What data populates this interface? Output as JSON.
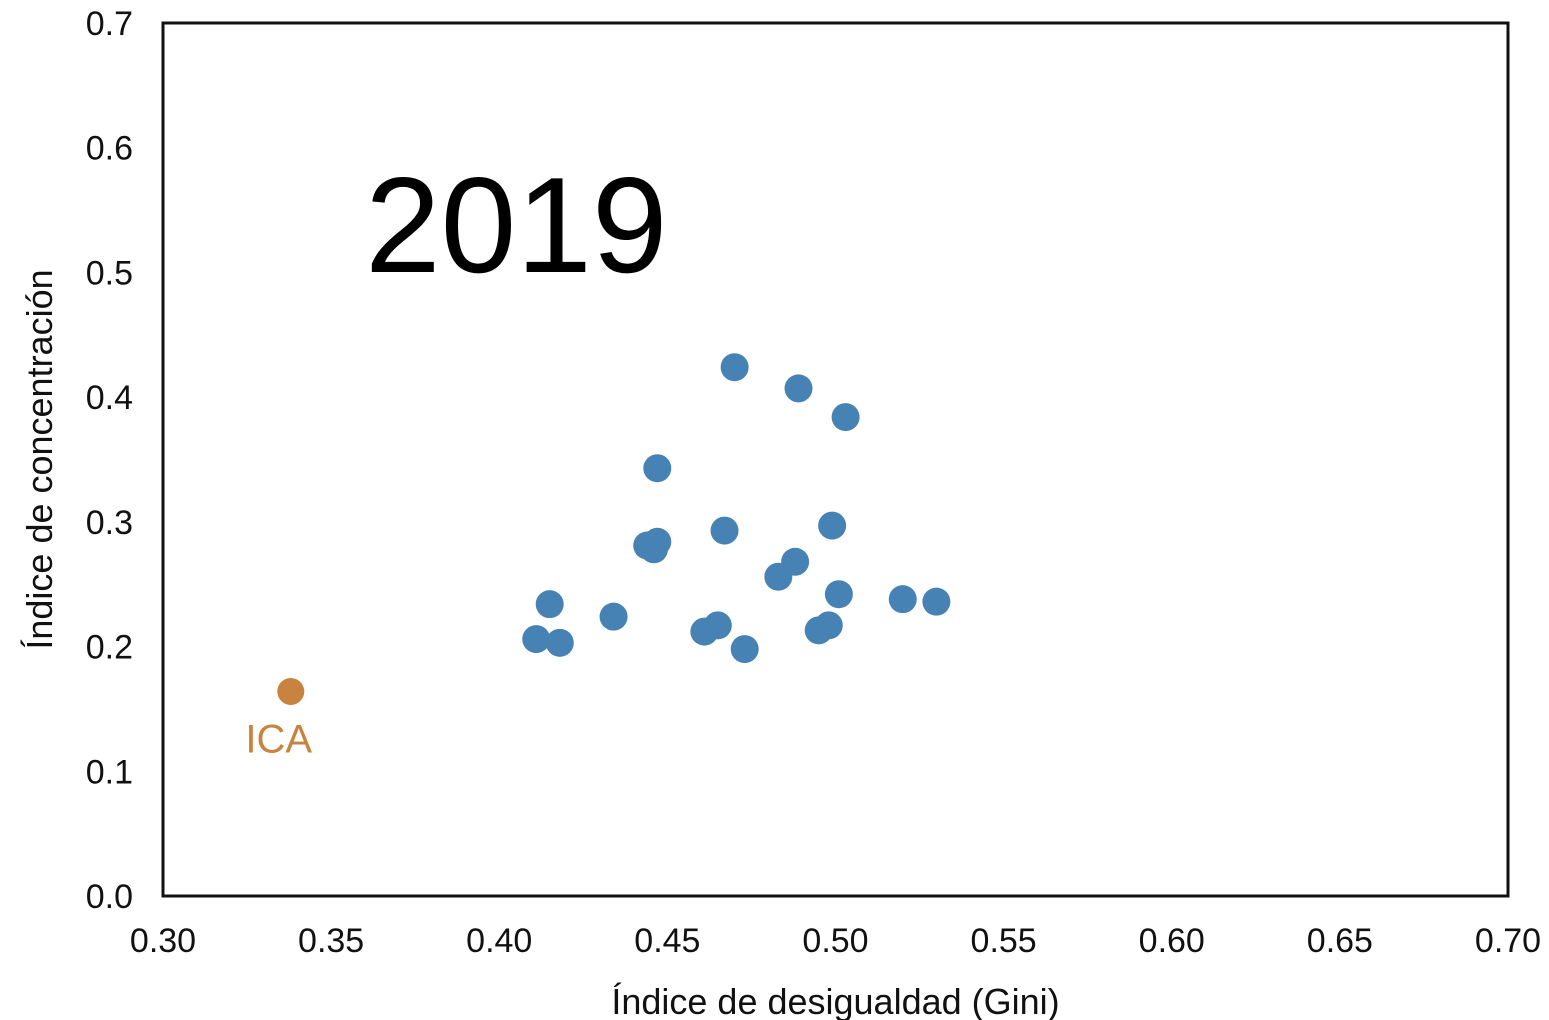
{
  "chart_data": {
    "type": "scatter",
    "xlabel": "Índice de desigualdad (Gini)",
    "ylabel": "Índice de concentración",
    "xlim": [
      0.3,
      0.7
    ],
    "ylim": [
      0.0,
      0.7
    ],
    "x_ticks": [
      "0.30",
      "0.35",
      "0.40",
      "0.45",
      "0.50",
      "0.55",
      "0.60",
      "0.65",
      "0.70"
    ],
    "y_ticks": [
      "0.0",
      "0.1",
      "0.2",
      "0.3",
      "0.4",
      "0.5",
      "0.6",
      "0.7"
    ],
    "grid": false,
    "annotations": [
      {
        "text": "2019"
      }
    ],
    "colors": {
      "default_point": "#4682b4",
      "highlight_point": "#c8833f",
      "axis": "#111111"
    },
    "series": [
      {
        "points": [
          {
            "x": 0.47,
            "y": 0.424
          },
          {
            "x": 0.489,
            "y": 0.407
          },
          {
            "x": 0.503,
            "y": 0.384
          },
          {
            "x": 0.447,
            "y": 0.343
          },
          {
            "x": 0.467,
            "y": 0.293
          },
          {
            "x": 0.499,
            "y": 0.297
          },
          {
            "x": 0.447,
            "y": 0.284
          },
          {
            "x": 0.444,
            "y": 0.281
          },
          {
            "x": 0.446,
            "y": 0.278
          },
          {
            "x": 0.488,
            "y": 0.268
          },
          {
            "x": 0.483,
            "y": 0.256
          },
          {
            "x": 0.501,
            "y": 0.242
          },
          {
            "x": 0.52,
            "y": 0.238
          },
          {
            "x": 0.53,
            "y": 0.236
          },
          {
            "x": 0.415,
            "y": 0.234
          },
          {
            "x": 0.434,
            "y": 0.224
          },
          {
            "x": 0.465,
            "y": 0.217
          },
          {
            "x": 0.461,
            "y": 0.212
          },
          {
            "x": 0.498,
            "y": 0.217
          },
          {
            "x": 0.495,
            "y": 0.213
          },
          {
            "x": 0.411,
            "y": 0.206
          },
          {
            "x": 0.418,
            "y": 0.203
          },
          {
            "x": 0.473,
            "y": 0.198
          }
        ]
      },
      {
        "highlight": true,
        "points": [
          {
            "x": 0.338,
            "y": 0.164,
            "label": "ICA"
          }
        ]
      }
    ]
  }
}
